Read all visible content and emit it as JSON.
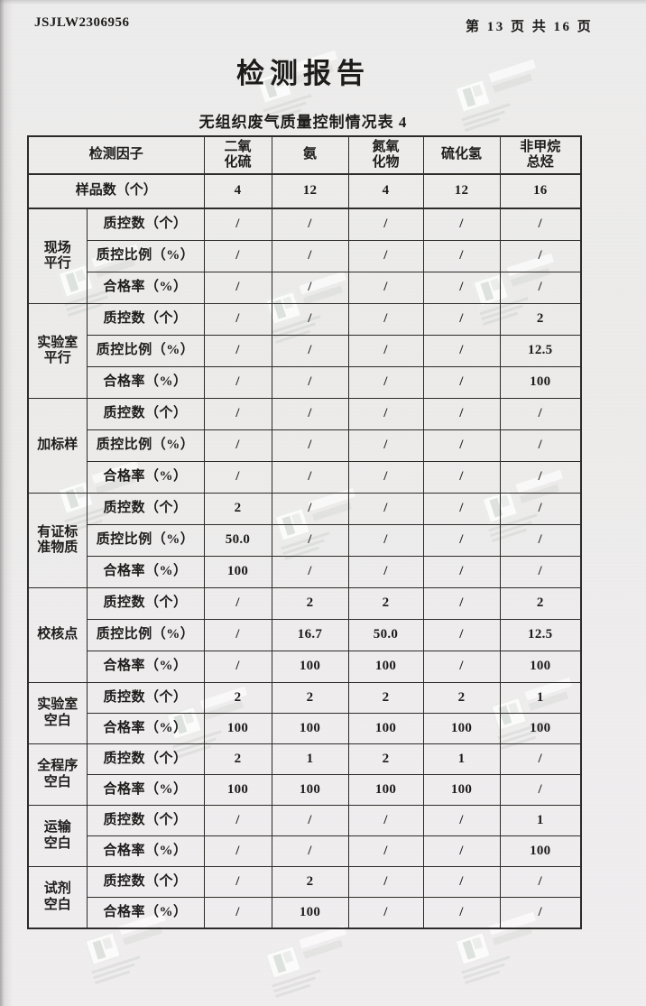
{
  "page": {
    "doc_number": "JSJLW2306956",
    "page_indicator": "第 13 页 共 16 页",
    "title": "检测报告",
    "subtitle": "无组织废气质量控制情况表 4"
  },
  "colors": {
    "paper": "#edecec",
    "ink": "#1d1c1b",
    "table_border": "#2d2b29",
    "watermark": "#ffffff"
  },
  "table": {
    "factor_header": "检测因子",
    "columns": [
      "二氧\n化硫",
      "氨",
      "氮氧\n化物",
      "硫化氢",
      "非甲烷\n总烃"
    ],
    "sample_row": {
      "label": "样品数（个）",
      "values": [
        "4",
        "12",
        "4",
        "12",
        "16"
      ]
    },
    "row_labels": {
      "qc_count": "质控数（个）",
      "qc_ratio": "质控比例（%）",
      "pass_rate": "合格率（%）"
    },
    "groups": [
      {
        "name": "现场\n平行",
        "rows": [
          {
            "label": "质控数（个）",
            "values": [
              "/",
              "/",
              "/",
              "/",
              "/"
            ]
          },
          {
            "label": "质控比例（%）",
            "values": [
              "/",
              "/",
              "/",
              "/",
              "/"
            ]
          },
          {
            "label": "合格率（%）",
            "values": [
              "/",
              "/",
              "/",
              "/",
              "/"
            ]
          }
        ]
      },
      {
        "name": "实验室\n平行",
        "rows": [
          {
            "label": "质控数（个）",
            "values": [
              "/",
              "/",
              "/",
              "/",
              "2"
            ]
          },
          {
            "label": "质控比例（%）",
            "values": [
              "/",
              "/",
              "/",
              "/",
              "12.5"
            ]
          },
          {
            "label": "合格率（%）",
            "values": [
              "/",
              "/",
              "/",
              "/",
              "100"
            ]
          }
        ]
      },
      {
        "name": "加标样",
        "rows": [
          {
            "label": "质控数（个）",
            "values": [
              "/",
              "/",
              "/",
              "/",
              "/"
            ]
          },
          {
            "label": "质控比例（%）",
            "values": [
              "/",
              "/",
              "/",
              "/",
              "/"
            ]
          },
          {
            "label": "合格率（%）",
            "values": [
              "/",
              "/",
              "/",
              "/",
              "/"
            ]
          }
        ]
      },
      {
        "name": "有证标\n准物质",
        "rows": [
          {
            "label": "质控数（个）",
            "values": [
              "2",
              "/",
              "/",
              "/",
              "/"
            ]
          },
          {
            "label": "质控比例（%）",
            "values": [
              "50.0",
              "/",
              "/",
              "/",
              "/"
            ]
          },
          {
            "label": "合格率（%）",
            "values": [
              "100",
              "/",
              "/",
              "/",
              "/"
            ]
          }
        ]
      },
      {
        "name": "校核点",
        "rows": [
          {
            "label": "质控数（个）",
            "values": [
              "/",
              "2",
              "2",
              "/",
              "2"
            ]
          },
          {
            "label": "质控比例（%）",
            "values": [
              "/",
              "16.7",
              "50.0",
              "/",
              "12.5"
            ]
          },
          {
            "label": "合格率（%）",
            "values": [
              "/",
              "100",
              "100",
              "/",
              "100"
            ]
          }
        ]
      },
      {
        "name": "实验室\n空白",
        "rows": [
          {
            "label": "质控数（个）",
            "values": [
              "2",
              "2",
              "2",
              "2",
              "1"
            ]
          },
          {
            "label": "合格率（%）",
            "values": [
              "100",
              "100",
              "100",
              "100",
              "100"
            ]
          }
        ]
      },
      {
        "name": "全程序\n空白",
        "rows": [
          {
            "label": "质控数（个）",
            "values": [
              "2",
              "1",
              "2",
              "1",
              "/"
            ]
          },
          {
            "label": "合格率（%）",
            "values": [
              "100",
              "100",
              "100",
              "100",
              "/"
            ]
          }
        ]
      },
      {
        "name": "运输\n空白",
        "rows": [
          {
            "label": "质控数（个）",
            "values": [
              "/",
              "/",
              "/",
              "/",
              "1"
            ]
          },
          {
            "label": "合格率（%）",
            "values": [
              "/",
              "/",
              "/",
              "/",
              "100"
            ]
          }
        ]
      },
      {
        "name": "试剂\n空白",
        "rows": [
          {
            "label": "质控数（个）",
            "values": [
              "/",
              "2",
              "/",
              "/",
              "/"
            ]
          },
          {
            "label": "合格率（%）",
            "values": [
              "/",
              "100",
              "/",
              "/",
              "/"
            ]
          }
        ]
      }
    ]
  }
}
